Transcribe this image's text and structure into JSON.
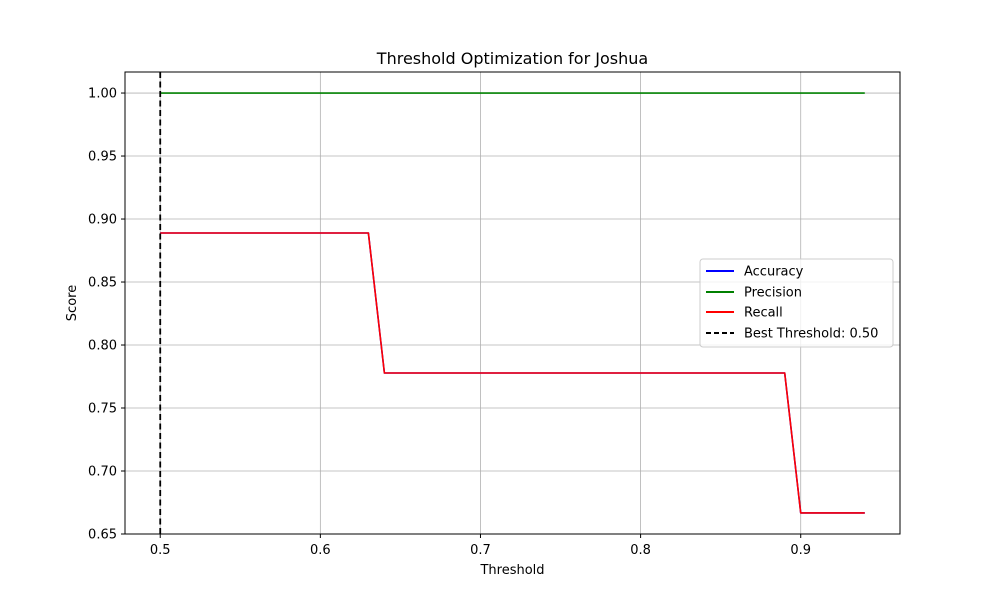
{
  "chart_data": {
    "type": "line",
    "title": "Threshold Optimization for Joshua",
    "xlabel": "Threshold",
    "ylabel": "Score",
    "xlim": [
      0.478,
      0.962
    ],
    "ylim": [
      0.65,
      1.0167
    ],
    "xticks": [
      0.5,
      0.6,
      0.7,
      0.8,
      0.9
    ],
    "yticks": [
      0.65,
      0.7,
      0.75,
      0.8,
      0.85,
      0.9,
      0.95,
      1.0
    ],
    "xtick_labels": [
      "0.5",
      "0.6",
      "0.7",
      "0.8",
      "0.9"
    ],
    "ytick_labels": [
      "0.65",
      "0.70",
      "0.75",
      "0.80",
      "0.85",
      "0.90",
      "0.95",
      "1.00"
    ],
    "grid": true,
    "legend_position": "center-right",
    "x": [
      0.5,
      0.51,
      0.52,
      0.53,
      0.54,
      0.55,
      0.56,
      0.57,
      0.58,
      0.59,
      0.6,
      0.61,
      0.62,
      0.63,
      0.64,
      0.65,
      0.66,
      0.67,
      0.68,
      0.69,
      0.7,
      0.71,
      0.72,
      0.73,
      0.74,
      0.75,
      0.76,
      0.77,
      0.78,
      0.79,
      0.8,
      0.81,
      0.82,
      0.83,
      0.84,
      0.85,
      0.86,
      0.87,
      0.88,
      0.89,
      0.9,
      0.91,
      0.92,
      0.93,
      0.94
    ],
    "series": [
      {
        "name": "Accuracy",
        "color": "#0000ff",
        "values": [
          0.8889,
          0.8889,
          0.8889,
          0.8889,
          0.8889,
          0.8889,
          0.8889,
          0.8889,
          0.8889,
          0.8889,
          0.8889,
          0.8889,
          0.8889,
          0.8889,
          0.7778,
          0.7778,
          0.7778,
          0.7778,
          0.7778,
          0.7778,
          0.7778,
          0.7778,
          0.7778,
          0.7778,
          0.7778,
          0.7778,
          0.7778,
          0.7778,
          0.7778,
          0.7778,
          0.7778,
          0.7778,
          0.7778,
          0.7778,
          0.7778,
          0.7778,
          0.7778,
          0.7778,
          0.7778,
          0.7778,
          0.6667,
          0.6667,
          0.6667,
          0.6667,
          0.6667
        ]
      },
      {
        "name": "Precision",
        "color": "#008000",
        "values": [
          1.0,
          1.0,
          1.0,
          1.0,
          1.0,
          1.0,
          1.0,
          1.0,
          1.0,
          1.0,
          1.0,
          1.0,
          1.0,
          1.0,
          1.0,
          1.0,
          1.0,
          1.0,
          1.0,
          1.0,
          1.0,
          1.0,
          1.0,
          1.0,
          1.0,
          1.0,
          1.0,
          1.0,
          1.0,
          1.0,
          1.0,
          1.0,
          1.0,
          1.0,
          1.0,
          1.0,
          1.0,
          1.0,
          1.0,
          1.0,
          1.0,
          1.0,
          1.0,
          1.0,
          1.0
        ]
      },
      {
        "name": "Recall",
        "color": "#ff0000",
        "values": [
          0.8889,
          0.8889,
          0.8889,
          0.8889,
          0.8889,
          0.8889,
          0.8889,
          0.8889,
          0.8889,
          0.8889,
          0.8889,
          0.8889,
          0.8889,
          0.8889,
          0.7778,
          0.7778,
          0.7778,
          0.7778,
          0.7778,
          0.7778,
          0.7778,
          0.7778,
          0.7778,
          0.7778,
          0.7778,
          0.7778,
          0.7778,
          0.7778,
          0.7778,
          0.7778,
          0.7778,
          0.7778,
          0.7778,
          0.7778,
          0.7778,
          0.7778,
          0.7778,
          0.7778,
          0.7778,
          0.7778,
          0.6667,
          0.6667,
          0.6667,
          0.6667,
          0.6667
        ]
      }
    ],
    "best_threshold": {
      "label": "Best Threshold: 0.50",
      "x": 0.5,
      "color": "#000000"
    }
  }
}
